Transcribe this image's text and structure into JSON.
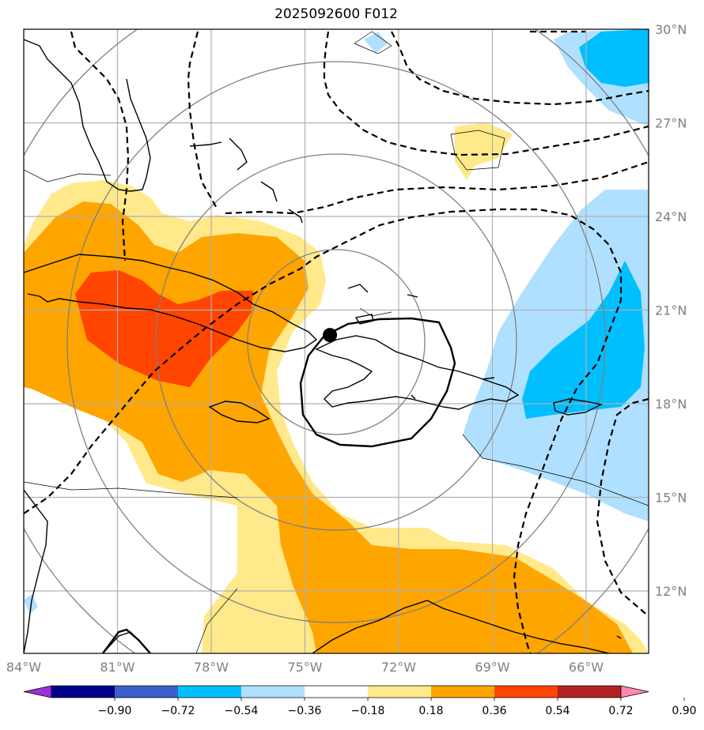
{
  "title": "2025092600 F012",
  "chart_data": {
    "type": "map",
    "extent": {
      "lon": [
        -84,
        -64
      ],
      "lat": [
        10,
        30
      ]
    },
    "lon_ticks": [
      {
        "value": -84,
        "label": "84°W"
      },
      {
        "value": -81,
        "label": "81°W"
      },
      {
        "value": -78,
        "label": "78°W"
      },
      {
        "value": -75,
        "label": "75°W"
      },
      {
        "value": -72,
        "label": "72°W"
      },
      {
        "value": -69,
        "label": "69°W"
      },
      {
        "value": -66,
        "label": "66°W"
      }
    ],
    "lat_ticks": [
      {
        "value": 30,
        "label": "30°N"
      },
      {
        "value": 27,
        "label": "27°N"
      },
      {
        "value": 24,
        "label": "24°N"
      },
      {
        "value": 21,
        "label": "21°N"
      },
      {
        "value": 18,
        "label": "18°N"
      },
      {
        "value": 15,
        "label": "15°N"
      },
      {
        "value": 12,
        "label": "12°N"
      }
    ],
    "grid": true,
    "storm_center": {
      "lon": -74.2,
      "lat": 20.2
    },
    "colorbar": {
      "levels": [
        -0.9,
        -0.72,
        -0.54,
        -0.36,
        -0.18,
        0.18,
        0.36,
        0.54,
        0.72,
        0.9
      ],
      "tick_labels": [
        "−0.90",
        "−0.72",
        "−0.54",
        "−0.36",
        "−0.18",
        "0.18",
        "0.36",
        "0.54",
        "0.72",
        "0.90"
      ],
      "colors": [
        "#9b30d9",
        "#00008b",
        "#3a5fcd",
        "#00bfff",
        "#b0e0ff",
        "#ffffff",
        "#ffe98a",
        "#ffa500",
        "#ff4500",
        "#b22222",
        "#ff88b0"
      ]
    }
  }
}
